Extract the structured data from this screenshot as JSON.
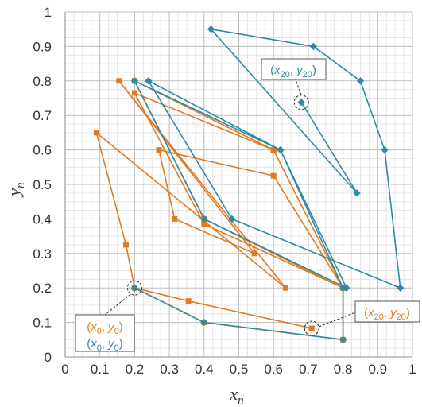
{
  "chart_data": {
    "type": "scatter",
    "xlabel": "x",
    "xlabel_sub": "n",
    "ylabel": "y",
    "ylabel_sub": "n",
    "xlim": [
      0,
      1
    ],
    "ylim": [
      0,
      1
    ],
    "x_ticks": [
      "0",
      "0.1",
      "0.2",
      "0.3",
      "0.4",
      "0.5",
      "0.6",
      "0.7",
      "0.8",
      "0.9",
      "1"
    ],
    "y_ticks": [
      "0",
      "0.1",
      "0.2",
      "0.3",
      "0.4",
      "0.5",
      "0.6",
      "0.7",
      "0.8",
      "0.9",
      "1"
    ],
    "grid": true,
    "minor_grid": true,
    "series": [
      {
        "color": "#E07B24",
        "marker": "square",
        "points": [
          [
            0.2,
            0.2
          ],
          [
            0.4,
            0.1
          ],
          [
            0.8,
            0.05
          ],
          [
            0.8,
            0.2
          ],
          [
            0.6,
            0.6
          ],
          [
            0.2,
            0.8
          ],
          [
            0.4,
            0.4
          ],
          [
            0.8,
            0.2
          ],
          [
            0.6,
            0.6
          ],
          [
            0.2,
            0.8
          ],
          [
            0.4,
            0.4
          ],
          [
            0.8,
            0.2
          ],
          [
            0.6,
            0.6
          ],
          [
            0.2,
            0.765
          ],
          [
            0.4,
            0.385
          ],
          [
            0.8,
            0.2
          ],
          [
            0.6,
            0.525
          ],
          [
            0.27,
            0.6
          ],
          [
            0.315,
            0.4
          ],
          [
            0.545,
            0.3
          ],
          [
            0.155,
            0.8
          ],
          [
            0.635,
            0.2
          ],
          [
            0.09,
            0.65
          ],
          [
            0.175,
            0.325
          ],
          [
            0.2,
            0.2
          ],
          [
            0.355,
            0.162
          ],
          [
            0.71,
            0.083
          ]
        ]
      },
      {
        "color": "#2E8BA3",
        "marker": "diamond",
        "points": [
          [
            0.2,
            0.2
          ],
          [
            0.4,
            0.1
          ],
          [
            0.8,
            0.05
          ],
          [
            0.8,
            0.2
          ],
          [
            0.62,
            0.6
          ],
          [
            0.2,
            0.8
          ],
          [
            0.4,
            0.4
          ],
          [
            0.81,
            0.2
          ],
          [
            0.62,
            0.6
          ],
          [
            0.24,
            0.8
          ],
          [
            0.48,
            0.4
          ],
          [
            0.965,
            0.2
          ],
          [
            0.92,
            0.6
          ],
          [
            0.85,
            0.8
          ],
          [
            0.715,
            0.9
          ],
          [
            0.42,
            0.95
          ],
          [
            0.84,
            0.475
          ],
          [
            0.68,
            0.738
          ]
        ]
      }
    ],
    "annotations": {
      "start_orange": "(x0, y0)",
      "start_teal": "(x0, y0)",
      "end_orange": "(x20, y20)",
      "end_teal": "(x20, y20)"
    }
  }
}
